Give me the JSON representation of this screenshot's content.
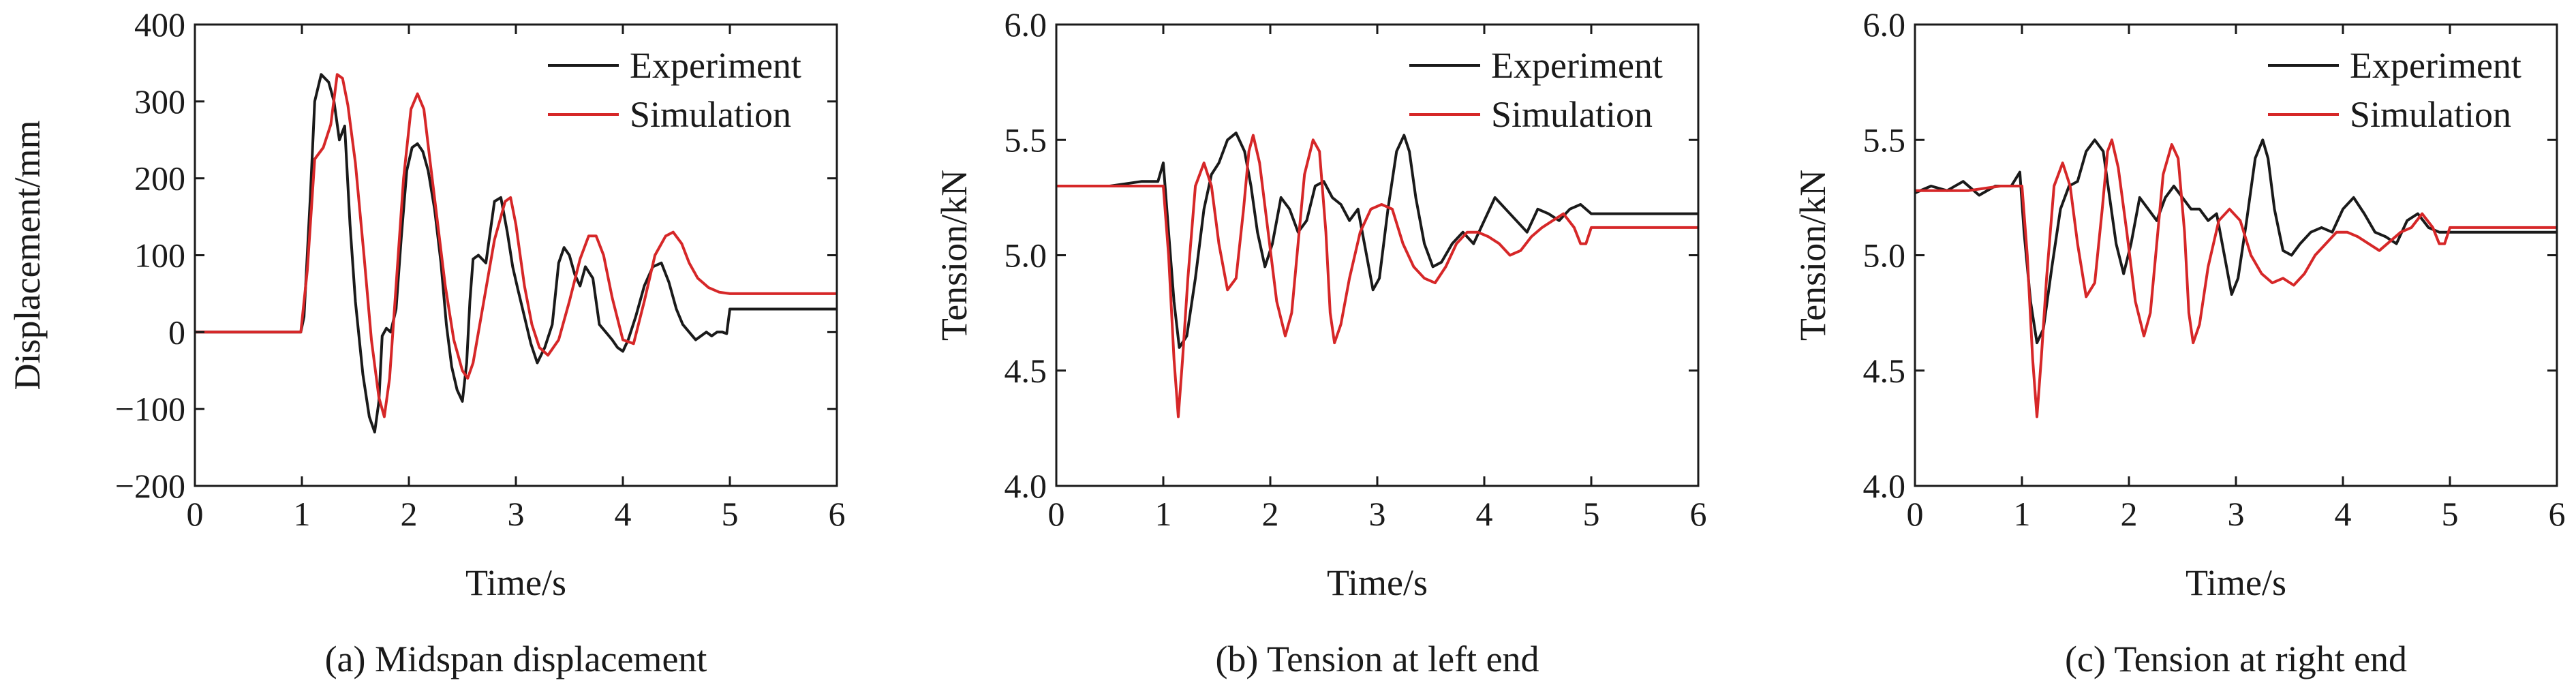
{
  "figure": {
    "panels_count": 3
  },
  "chart_data": [
    {
      "type": "line",
      "caption": "(a) Midspan displacement",
      "xlabel": "Time/s",
      "ylabel": "Displacement/mm",
      "xlim": [
        0,
        6
      ],
      "ylim": [
        -200,
        400
      ],
      "xticks": [
        0,
        1,
        2,
        3,
        4,
        5,
        6
      ],
      "yticks": [
        -200,
        -100,
        0,
        100,
        200,
        300,
        400
      ],
      "ytick_labels": [
        "−200",
        "−100",
        "0",
        "100",
        "200",
        "300",
        "400"
      ],
      "grid": false,
      "legend_position": "top-right",
      "series": [
        {
          "name": "Experiment",
          "color": "#1a1a1a",
          "x": [
            0,
            0.99,
            1.02,
            1.08,
            1.12,
            1.18,
            1.25,
            1.3,
            1.35,
            1.4,
            1.45,
            1.5,
            1.57,
            1.63,
            1.68,
            1.72,
            1.75,
            1.79,
            1.83,
            1.88,
            1.93,
            1.98,
            2.03,
            2.08,
            2.13,
            2.18,
            2.24,
            2.3,
            2.35,
            2.4,
            2.45,
            2.5,
            2.54,
            2.57,
            2.6,
            2.65,
            2.72,
            2.8,
            2.86,
            2.92,
            2.97,
            3.02,
            3.08,
            3.14,
            3.2,
            3.27,
            3.34,
            3.4,
            3.45,
            3.5,
            3.55,
            3.6,
            3.65,
            3.72,
            3.78,
            3.84,
            3.9,
            3.95,
            4.0,
            4.05,
            4.12,
            4.2,
            4.28,
            4.36,
            4.43,
            4.5,
            4.56,
            4.62,
            4.68,
            4.73,
            4.78,
            4.83,
            4.88,
            4.93,
            4.97,
            5.0,
            5.2,
            6.0
          ],
          "y": [
            0,
            0,
            20,
            180,
            300,
            335,
            325,
            300,
            250,
            268,
            140,
            40,
            -55,
            -110,
            -130,
            -90,
            -5,
            5,
            0,
            30,
            125,
            210,
            240,
            245,
            235,
            210,
            160,
            90,
            10,
            -45,
            -75,
            -90,
            -40,
            40,
            95,
            100,
            90,
            170,
            175,
            130,
            85,
            55,
            20,
            -15,
            -40,
            -20,
            10,
            90,
            110,
            100,
            75,
            60,
            85,
            70,
            10,
            0,
            -10,
            -20,
            -25,
            -10,
            20,
            60,
            85,
            90,
            65,
            30,
            10,
            0,
            -10,
            -5,
            0,
            -5,
            0,
            0,
            -2,
            30,
            30,
            30
          ]
        },
        {
          "name": "Simulation",
          "color": "#d62728",
          "x": [
            0,
            0.99,
            1.05,
            1.12,
            1.2,
            1.27,
            1.33,
            1.38,
            1.43,
            1.5,
            1.58,
            1.65,
            1.72,
            1.77,
            1.82,
            1.88,
            1.95,
            2.02,
            2.08,
            2.14,
            2.2,
            2.27,
            2.34,
            2.42,
            2.5,
            2.55,
            2.6,
            2.7,
            2.8,
            2.9,
            2.95,
            3.0,
            3.08,
            3.15,
            3.22,
            3.3,
            3.4,
            3.5,
            3.6,
            3.68,
            3.75,
            3.82,
            3.9,
            4.0,
            4.1,
            4.2,
            4.3,
            4.4,
            4.47,
            4.55,
            4.62,
            4.7,
            4.8,
            4.9,
            5.0,
            5.2,
            6.0
          ],
          "y": [
            0,
            0,
            80,
            225,
            240,
            270,
            335,
            330,
            295,
            220,
            100,
            -10,
            -85,
            -110,
            -60,
            60,
            200,
            290,
            310,
            290,
            220,
            140,
            60,
            -10,
            -50,
            -60,
            -40,
            40,
            120,
            170,
            175,
            140,
            60,
            10,
            -20,
            -30,
            -10,
            40,
            95,
            125,
            125,
            100,
            45,
            -10,
            -15,
            40,
            100,
            125,
            130,
            115,
            90,
            70,
            58,
            52,
            50,
            50,
            50
          ]
        }
      ]
    },
    {
      "type": "line",
      "caption": "(b) Tension at left end",
      "xlabel": "Time/s",
      "ylabel": "Tension/kN",
      "xlim": [
        0,
        6
      ],
      "ylim": [
        4.0,
        6.0
      ],
      "xticks": [
        0,
        1,
        2,
        3,
        4,
        5,
        6
      ],
      "yticks": [
        4.0,
        4.5,
        5.0,
        5.5,
        6.0
      ],
      "ytick_labels": [
        "4.0",
        "4.5",
        "5.0",
        "5.5",
        "6.0"
      ],
      "grid": false,
      "legend_position": "top-right",
      "series": [
        {
          "name": "Experiment",
          "color": "#1a1a1a",
          "x": [
            0,
            0.5,
            0.8,
            0.95,
            1.0,
            1.05,
            1.1,
            1.15,
            1.22,
            1.3,
            1.38,
            1.45,
            1.52,
            1.6,
            1.68,
            1.76,
            1.82,
            1.88,
            1.95,
            2.02,
            2.1,
            2.18,
            2.26,
            2.34,
            2.42,
            2.5,
            2.58,
            2.66,
            2.74,
            2.82,
            2.9,
            2.96,
            3.02,
            3.1,
            3.18,
            3.25,
            3.3,
            3.36,
            3.44,
            3.52,
            3.6,
            3.7,
            3.8,
            3.9,
            4.0,
            4.1,
            4.2,
            4.3,
            4.4,
            4.5,
            4.6,
            4.7,
            4.8,
            4.9,
            5.0,
            5.2,
            6.0
          ],
          "y": [
            5.3,
            5.3,
            5.32,
            5.32,
            5.4,
            5.1,
            4.8,
            4.6,
            4.65,
            4.9,
            5.2,
            5.35,
            5.4,
            5.5,
            5.53,
            5.45,
            5.3,
            5.1,
            4.95,
            5.05,
            5.25,
            5.2,
            5.1,
            5.15,
            5.3,
            5.32,
            5.25,
            5.22,
            5.15,
            5.2,
            5.0,
            4.85,
            4.9,
            5.2,
            5.45,
            5.52,
            5.45,
            5.25,
            5.05,
            4.95,
            4.97,
            5.05,
            5.1,
            5.05,
            5.15,
            5.25,
            5.2,
            5.15,
            5.1,
            5.2,
            5.18,
            5.15,
            5.2,
            5.22,
            5.18,
            5.18,
            5.18
          ]
        },
        {
          "name": "Simulation",
          "color": "#d62728",
          "x": [
            0,
            0.5,
            0.8,
            0.95,
            1.0,
            1.05,
            1.1,
            1.14,
            1.18,
            1.23,
            1.3,
            1.38,
            1.45,
            1.52,
            1.6,
            1.68,
            1.75,
            1.8,
            1.84,
            1.9,
            1.98,
            2.06,
            2.14,
            2.2,
            2.26,
            2.32,
            2.4,
            2.46,
            2.52,
            2.56,
            2.6,
            2.66,
            2.74,
            2.84,
            2.94,
            3.04,
            3.14,
            3.24,
            3.34,
            3.44,
            3.54,
            3.64,
            3.74,
            3.84,
            3.94,
            4.04,
            4.14,
            4.24,
            4.34,
            4.44,
            4.54,
            4.64,
            4.74,
            4.84,
            4.9,
            4.95,
            5.0,
            5.2,
            6.0
          ],
          "y": [
            5.3,
            5.3,
            5.3,
            5.3,
            5.3,
            5.0,
            4.55,
            4.3,
            4.55,
            4.9,
            5.3,
            5.4,
            5.3,
            5.05,
            4.85,
            4.9,
            5.2,
            5.45,
            5.52,
            5.4,
            5.1,
            4.8,
            4.65,
            4.75,
            5.05,
            5.35,
            5.5,
            5.45,
            5.1,
            4.75,
            4.62,
            4.7,
            4.9,
            5.1,
            5.2,
            5.22,
            5.2,
            5.05,
            4.95,
            4.9,
            4.88,
            4.95,
            5.05,
            5.1,
            5.1,
            5.08,
            5.05,
            5.0,
            5.02,
            5.08,
            5.12,
            5.15,
            5.18,
            5.12,
            5.05,
            5.05,
            5.12,
            5.12,
            5.12
          ]
        }
      ]
    },
    {
      "type": "line",
      "caption": "(c) Tension at right end",
      "xlabel": "Time/s",
      "ylabel": "Tension/kN",
      "xlim": [
        0,
        6
      ],
      "ylim": [
        4.0,
        6.0
      ],
      "xticks": [
        0,
        1,
        2,
        3,
        4,
        5,
        6
      ],
      "yticks": [
        4.0,
        4.5,
        5.0,
        5.5,
        6.0
      ],
      "ytick_labels": [
        "4.0",
        "4.5",
        "5.0",
        "5.5",
        "6.0"
      ],
      "grid": false,
      "legend_position": "top-right",
      "series": [
        {
          "name": "Experiment",
          "color": "#1a1a1a",
          "x": [
            0,
            0.15,
            0.3,
            0.45,
            0.6,
            0.75,
            0.9,
            0.98,
            1.02,
            1.08,
            1.14,
            1.2,
            1.28,
            1.36,
            1.44,
            1.52,
            1.6,
            1.68,
            1.76,
            1.82,
            1.88,
            1.95,
            2.02,
            2.1,
            2.18,
            2.26,
            2.34,
            2.42,
            2.5,
            2.58,
            2.66,
            2.74,
            2.82,
            2.9,
            2.96,
            3.02,
            3.1,
            3.18,
            3.25,
            3.3,
            3.36,
            3.44,
            3.52,
            3.6,
            3.7,
            3.8,
            3.9,
            4.0,
            4.1,
            4.2,
            4.3,
            4.4,
            4.5,
            4.6,
            4.7,
            4.8,
            4.9,
            5.0,
            5.2,
            6.0
          ],
          "y": [
            5.27,
            5.3,
            5.28,
            5.32,
            5.26,
            5.3,
            5.3,
            5.36,
            5.1,
            4.8,
            4.62,
            4.68,
            4.95,
            5.2,
            5.3,
            5.32,
            5.45,
            5.5,
            5.45,
            5.25,
            5.05,
            4.92,
            5.05,
            5.25,
            5.2,
            5.15,
            5.25,
            5.3,
            5.25,
            5.2,
            5.2,
            5.15,
            5.18,
            4.98,
            4.83,
            4.9,
            5.15,
            5.42,
            5.5,
            5.42,
            5.2,
            5.02,
            5.0,
            5.05,
            5.1,
            5.12,
            5.1,
            5.2,
            5.25,
            5.18,
            5.1,
            5.08,
            5.05,
            5.15,
            5.18,
            5.12,
            5.1,
            5.1,
            5.1,
            5.1
          ]
        },
        {
          "name": "Simulation",
          "color": "#d62728",
          "x": [
            0,
            0.5,
            0.8,
            0.95,
            1.0,
            1.05,
            1.1,
            1.14,
            1.18,
            1.23,
            1.3,
            1.38,
            1.45,
            1.52,
            1.6,
            1.68,
            1.75,
            1.8,
            1.84,
            1.9,
            1.98,
            2.06,
            2.14,
            2.2,
            2.26,
            2.32,
            2.4,
            2.46,
            2.52,
            2.56,
            2.6,
            2.66,
            2.74,
            2.84,
            2.94,
            3.04,
            3.14,
            3.24,
            3.34,
            3.44,
            3.54,
            3.64,
            3.74,
            3.84,
            3.94,
            4.04,
            4.14,
            4.24,
            4.34,
            4.44,
            4.54,
            4.64,
            4.74,
            4.84,
            4.9,
            4.95,
            5.0,
            5.2,
            6.0
          ],
          "y": [
            5.28,
            5.28,
            5.3,
            5.3,
            5.3,
            5.0,
            4.55,
            4.3,
            4.55,
            4.9,
            5.3,
            5.4,
            5.3,
            5.05,
            4.82,
            4.88,
            5.2,
            5.45,
            5.5,
            5.38,
            5.1,
            4.8,
            4.65,
            4.75,
            5.05,
            5.35,
            5.48,
            5.42,
            5.1,
            4.75,
            4.62,
            4.7,
            4.95,
            5.15,
            5.2,
            5.15,
            5.0,
            4.92,
            4.88,
            4.9,
            4.87,
            4.92,
            5.0,
            5.05,
            5.1,
            5.1,
            5.08,
            5.05,
            5.02,
            5.06,
            5.1,
            5.12,
            5.18,
            5.12,
            5.05,
            5.05,
            5.12,
            5.12,
            5.12
          ]
        }
      ]
    }
  ]
}
